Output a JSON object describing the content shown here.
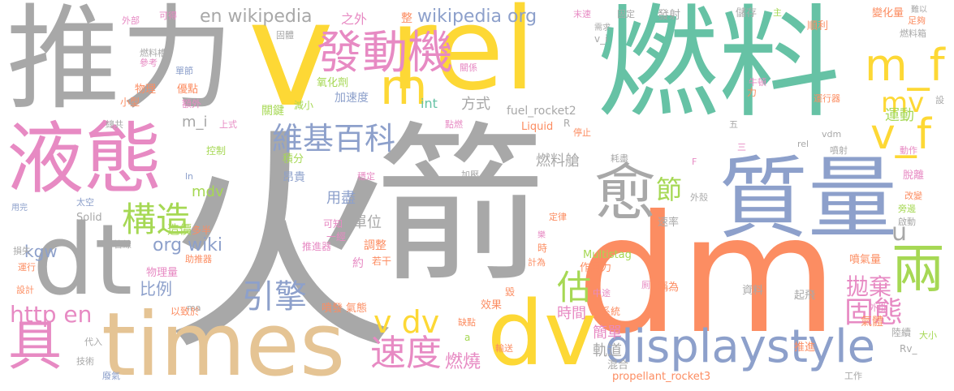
{
  "palette": {
    "gray": "#a8a8a8",
    "yellow": "#fdd835",
    "green": "#66c2a5",
    "pink": "#e78ac3",
    "blue": "#8da0cb",
    "orange": "#fc8d62",
    "tan": "#e5c494",
    "lime": "#a6d854"
  },
  "words": [
    {
      "id": "huo",
      "text": "火",
      "color": "gray"
    },
    {
      "id": "jian",
      "text": "箭",
      "color": "gray"
    },
    {
      "id": "tuili",
      "text": "推力",
      "color": "gray"
    },
    {
      "id": "ranliao",
      "text": "燃料",
      "color": "green"
    },
    {
      "id": "dm",
      "text": "dm",
      "color": "orange"
    },
    {
      "id": "rel",
      "text": "rel",
      "color": "yellow"
    },
    {
      "id": "v",
      "text": "v",
      "color": "yellow"
    },
    {
      "id": "times",
      "text": "times",
      "color": "tan"
    },
    {
      "id": "zhiliang",
      "text": "質量",
      "color": "blue"
    },
    {
      "id": "yetai",
      "text": "液態",
      "color": "pink"
    },
    {
      "id": "dt",
      "text": "dt",
      "color": "gray"
    },
    {
      "id": "dv",
      "text": "dv",
      "color": "yellow"
    },
    {
      "id": "displaystyle",
      "text": "displaystyle",
      "color": "blue"
    },
    {
      "id": "fadongji",
      "text": "發動機",
      "color": "pink"
    },
    {
      "id": "yu",
      "text": "愈",
      "color": "gray"
    },
    {
      "id": "m",
      "text": "m",
      "color": "yellow"
    },
    {
      "id": "m_f",
      "text": "m_f",
      "color": "yellow"
    },
    {
      "id": "v_f",
      "text": "v_f",
      "color": "yellow"
    },
    {
      "id": "mv",
      "text": "mv",
      "color": "yellow"
    },
    {
      "id": "liang",
      "text": "兩",
      "color": "lime"
    },
    {
      "id": "ju",
      "text": "具",
      "color": "pink"
    },
    {
      "id": "gouzao",
      "text": "構造",
      "color": "lime"
    },
    {
      "id": "weiji",
      "text": "維基百科",
      "color": "blue"
    },
    {
      "id": "sudu",
      "text": "速度",
      "color": "pink"
    },
    {
      "id": "yinqing",
      "text": "引擎",
      "color": "blue"
    },
    {
      "id": "vdv",
      "text": "v dv",
      "color": "yellow"
    },
    {
      "id": "httpen",
      "text": "http en",
      "color": "pink"
    },
    {
      "id": "gutai",
      "text": "固態",
      "color": "pink"
    },
    {
      "id": "paoqi",
      "text": "拋棄",
      "color": "pink"
    },
    {
      "id": "gu",
      "text": "估",
      "color": "lime"
    },
    {
      "id": "jie",
      "text": "節",
      "color": "lime"
    },
    {
      "id": "u",
      "text": "u",
      "color": "gray"
    },
    {
      "id": "yundong",
      "text": "運動",
      "color": "lime"
    },
    {
      "id": "enwiki",
      "text": "en wikipedia",
      "color": "gray"
    },
    {
      "id": "wikiorg",
      "text": "wikipedia org",
      "color": "blue"
    },
    {
      "id": "orgwiki",
      "text": "org wiki",
      "color": "blue"
    },
    {
      "id": "ranliaocang",
      "text": "燃料艙",
      "color": "gray"
    },
    {
      "id": "ranshao",
      "text": "燃燒",
      "color": "pink"
    },
    {
      "id": "shijian",
      "text": "時間",
      "color": "pink"
    },
    {
      "id": "jiandan",
      "text": "簡單",
      "color": "pink"
    },
    {
      "id": "guidao",
      "text": "軌道",
      "color": "gray"
    },
    {
      "id": "bili",
      "text": "比例",
      "color": "blue"
    },
    {
      "id": "kgw",
      "text": "kgw",
      "color": "blue"
    },
    {
      "id": "danwei",
      "text": "單位",
      "color": "gray"
    },
    {
      "id": "yongjin",
      "text": "用盡",
      "color": "blue"
    },
    {
      "id": "fangshi",
      "text": "方式",
      "color": "gray"
    },
    {
      "id": "int",
      "text": "int",
      "color": "green"
    },
    {
      "id": "mdv",
      "text": "mdv",
      "color": "lime"
    },
    {
      "id": "m_i",
      "text": "m_i",
      "color": "gray"
    },
    {
      "id": "zhiwai",
      "text": "之外",
      "color": "pink"
    },
    {
      "id": "zheng",
      "text": "整",
      "color": "orange"
    },
    {
      "id": "fuel_rocket2",
      "text": "fuel_rocket2",
      "color": "gray"
    },
    {
      "id": "multistag",
      "text": "Multistag",
      "color": "lime"
    },
    {
      "id": "liquid",
      "text": "Liquid",
      "color": "orange"
    },
    {
      "id": "propellant",
      "text": "propellant_rocket3",
      "color": "orange"
    },
    {
      "id": "solid",
      "text": "Solid",
      "color": "gray"
    },
    {
      "id": "zaojia",
      "text": "造價",
      "color": "lime"
    },
    {
      "id": "duoban",
      "text": "多半",
      "color": "orange"
    },
    {
      "id": "angui",
      "text": "昂貴",
      "color": "blue"
    },
    {
      "id": "jifen",
      "text": "積分",
      "color": "lime"
    },
    {
      "id": "guanjian",
      "text": "關鍵",
      "color": "lime"
    },
    {
      "id": "jiansu",
      "text": "減小",
      "color": "lime"
    },
    {
      "id": "jiasudu",
      "text": "加速度",
      "color": "blue"
    },
    {
      "id": "qiyangji",
      "text": "氧化劑",
      "color": "lime"
    },
    {
      "id": "youdian",
      "text": "優點",
      "color": "orange"
    },
    {
      "id": "wuli",
      "text": "物理",
      "color": "orange"
    },
    {
      "id": "ewai",
      "text": "額外",
      "color": "pink"
    },
    {
      "id": "xiaoxing",
      "text": "小型",
      "color": "orange"
    },
    {
      "id": "kongzhi",
      "text": "控制",
      "color": "lime"
    },
    {
      "id": "wailiang",
      "text": "物理量",
      "color": "pink"
    },
    {
      "id": "zhutuiqi",
      "text": "助推器",
      "color": "orange"
    },
    {
      "id": "guanxian",
      "text": "管線",
      "color": "gray"
    },
    {
      "id": "yizhiyu",
      "text": "以致於",
      "color": "orange"
    },
    {
      "id": "penfa",
      "text": "噴發",
      "color": "orange"
    },
    {
      "id": "qitai",
      "text": "氣態",
      "color": "orange"
    },
    {
      "id": "xiaoguo",
      "text": "效果",
      "color": "orange"
    },
    {
      "id": "tiaozheng",
      "text": "調整",
      "color": "orange"
    },
    {
      "id": "tuijinqi",
      "text": "推進器",
      "color": "pink"
    },
    {
      "id": "yijing",
      "text": "一經",
      "color": "pink"
    },
    {
      "id": "kezhi",
      "text": "可知",
      "color": "pink"
    },
    {
      "id": "ruogan",
      "text": "若干",
      "color": "orange"
    },
    {
      "id": "yue",
      "text": "約",
      "color": "pink"
    },
    {
      "id": "zuoyongli",
      "text": "作用力",
      "color": "orange"
    },
    {
      "id": "zhongtu",
      "text": "中途",
      "color": "pink"
    },
    {
      "id": "xitong",
      "text": "系統",
      "color": "orange"
    },
    {
      "id": "queidan",
      "text": "缺點",
      "color": "orange"
    },
    {
      "id": "shusong",
      "text": "輸送",
      "color": "orange"
    },
    {
      "id": "hunhe",
      "text": "混合",
      "color": "gray"
    },
    {
      "id": "chengwei",
      "text": "稱為",
      "color": "orange"
    },
    {
      "id": "ziliao",
      "text": "資料",
      "color": "gray"
    },
    {
      "id": "qifei",
      "text": "起飛",
      "color": "gray"
    },
    {
      "id": "waigua",
      "text": "外掛",
      "color": "pink"
    },
    {
      "id": "qiti",
      "text": "氣體",
      "color": "orange"
    },
    {
      "id": "luxu",
      "text": "陸續",
      "color": "gray"
    },
    {
      "id": "daxiao",
      "text": "大小",
      "color": "lime"
    },
    {
      "id": "tuijin",
      "text": "推進",
      "color": "orange"
    },
    {
      "id": "gongzuo",
      "text": "工作",
      "color": "gray"
    },
    {
      "id": "rv",
      "text": "Rv_",
      "color": "gray"
    },
    {
      "id": "penqiliang",
      "text": "噴氣量",
      "color": "orange"
    },
    {
      "id": "qidong",
      "text": "啟動",
      "color": "gray"
    },
    {
      "id": "pangtou",
      "text": "旁邊",
      "color": "lime"
    },
    {
      "id": "gaibian",
      "text": "改變",
      "color": "orange"
    },
    {
      "id": "tuoli",
      "text": "脫離",
      "color": "pink"
    },
    {
      "id": "dongzuo",
      "text": "動作",
      "color": "pink"
    },
    {
      "id": "penshe",
      "text": "噴射",
      "color": "gray"
    },
    {
      "id": "rel_s",
      "text": "rel",
      "color": "gray"
    },
    {
      "id": "vdm",
      "text": "vdm",
      "color": "gray"
    },
    {
      "id": "yunxingqi",
      "text": "運行器",
      "color": "orange"
    },
    {
      "id": "niudun",
      "text": "牛頓",
      "color": "pink"
    },
    {
      "id": "li",
      "text": "力",
      "color": "orange"
    },
    {
      "id": "shunli",
      "text": "順利",
      "color": "orange"
    },
    {
      "id": "bianhualiang",
      "text": "變化量",
      "color": "orange"
    },
    {
      "id": "zugou",
      "text": "足夠",
      "color": "orange"
    },
    {
      "id": "nanyi",
      "text": "難以",
      "color": "gray"
    },
    {
      "id": "ranliaoxiang",
      "text": "燃料箱",
      "color": "gray"
    },
    {
      "id": "chucun",
      "text": "儲存",
      "color": "gray"
    },
    {
      "id": "zhu",
      "text": "主",
      "color": "lime"
    },
    {
      "id": "fashe",
      "text": "發射",
      "color": "gray"
    },
    {
      "id": "guding",
      "text": "固定",
      "color": "gray"
    },
    {
      "id": "mosu",
      "text": "末速",
      "color": "pink"
    },
    {
      "id": "xuqiu",
      "text": "需求",
      "color": "gray"
    },
    {
      "id": "guanxi",
      "text": "關係",
      "color": "pink"
    },
    {
      "id": "v_i",
      "text": "v_i",
      "color": "gray"
    },
    {
      "id": "dianran",
      "text": "點燃",
      "color": "pink"
    },
    {
      "id": "tingzhi",
      "text": "停止",
      "color": "orange"
    },
    {
      "id": "R",
      "text": "R",
      "color": "gray"
    },
    {
      "id": "haojin",
      "text": "耗盡",
      "color": "gray"
    },
    {
      "id": "wenting",
      "text": "穩定",
      "color": "pink"
    },
    {
      "id": "jiaya",
      "text": "加壓",
      "color": "gray"
    },
    {
      "id": "taikong",
      "text": "太空",
      "color": "blue"
    },
    {
      "id": "waibu",
      "text": "外部",
      "color": "pink"
    },
    {
      "id": "kede",
      "text": "可得",
      "color": "pink"
    },
    {
      "id": "guqi",
      "text": "固體",
      "color": "gray"
    },
    {
      "id": "ranliaocao",
      "text": "燃料槽",
      "color": "gray"
    },
    {
      "id": "cankao",
      "text": "參考",
      "color": "pink"
    },
    {
      "id": "danjie",
      "text": "單節",
      "color": "blue"
    },
    {
      "id": "zonggong",
      "text": "總共",
      "color": "gray"
    },
    {
      "id": "shangshi",
      "text": "上式",
      "color": "pink"
    },
    {
      "id": "ln",
      "text": "ln",
      "color": "blue"
    },
    {
      "id": "yongwan",
      "text": "用完",
      "color": "blue"
    },
    {
      "id": "sunshi",
      "text": "損失",
      "color": "gray"
    },
    {
      "id": "yunxing",
      "text": "運行",
      "color": "orange"
    },
    {
      "id": "sheji",
      "text": "設計",
      "color": "orange"
    },
    {
      "id": "ma",
      "text": "ma",
      "color": "gray"
    },
    {
      "id": "dairu",
      "text": "代入",
      "color": "gray"
    },
    {
      "id": "jishu",
      "text": "技術",
      "color": "gray"
    },
    {
      "id": "feiqi",
      "text": "廢氣",
      "color": "blue"
    },
    {
      "id": "waike",
      "text": "外殼",
      "color": "gray"
    },
    {
      "id": "sulu",
      "text": "速率",
      "color": "gray"
    },
    {
      "id": "dinglv",
      "text": "定律",
      "color": "orange"
    },
    {
      "id": "jiwei",
      "text": "計為",
      "color": "orange"
    },
    {
      "id": "shi",
      "text": "時",
      "color": "orange"
    },
    {
      "id": "hui",
      "text": "毀",
      "color": "orange"
    },
    {
      "id": "wu",
      "text": "五",
      "color": "gray"
    },
    {
      "id": "san",
      "text": "三",
      "color": "pink"
    },
    {
      "id": "she",
      "text": "設",
      "color": "gray"
    },
    {
      "id": "F",
      "text": "F",
      "color": "pink"
    },
    {
      "id": "a",
      "text": "a",
      "color": "lime"
    },
    {
      "id": "jun",
      "text": "樂",
      "color": "pink"
    },
    {
      "id": "ce",
      "text": "厠",
      "color": "pink"
    }
  ]
}
